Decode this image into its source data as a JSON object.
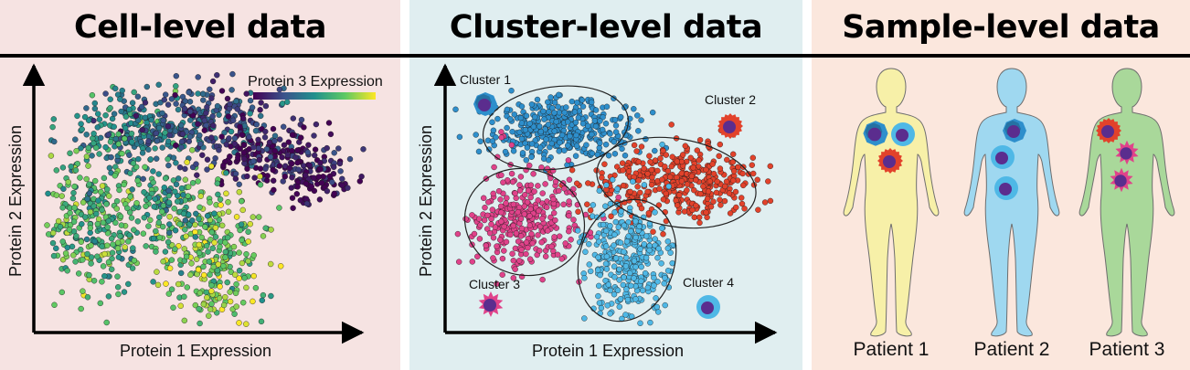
{
  "panels": {
    "cell": {
      "title": "Cell-level data",
      "xlabel": "Protein 1 Expression",
      "ylabel": "Protein 2 Expression",
      "colorbar_label": "Protein 3 Expression"
    },
    "cluster": {
      "title": "Cluster-level data",
      "xlabel": "Protein 1 Expression",
      "ylabel": "Protein 2 Expression",
      "clusters": [
        {
          "label": "Cluster 1",
          "color": "#2e8fcc"
        },
        {
          "label": "Cluster 2",
          "color": "#e2422b"
        },
        {
          "label": "Cluster 3",
          "color": "#e0428a"
        },
        {
          "label": "Cluster 4",
          "color": "#4fb8e6"
        }
      ]
    },
    "sample": {
      "title": "Sample-level data",
      "patients": [
        {
          "label": "Patient 1",
          "body_color": "#f7f0a8"
        },
        {
          "label": "Patient 2",
          "body_color": "#9fd8f0"
        },
        {
          "label": "Patient 3",
          "body_color": "#a9d89a"
        }
      ]
    }
  },
  "colors": {
    "nucleus": "#5b2d8e",
    "divider": "#000000"
  }
}
